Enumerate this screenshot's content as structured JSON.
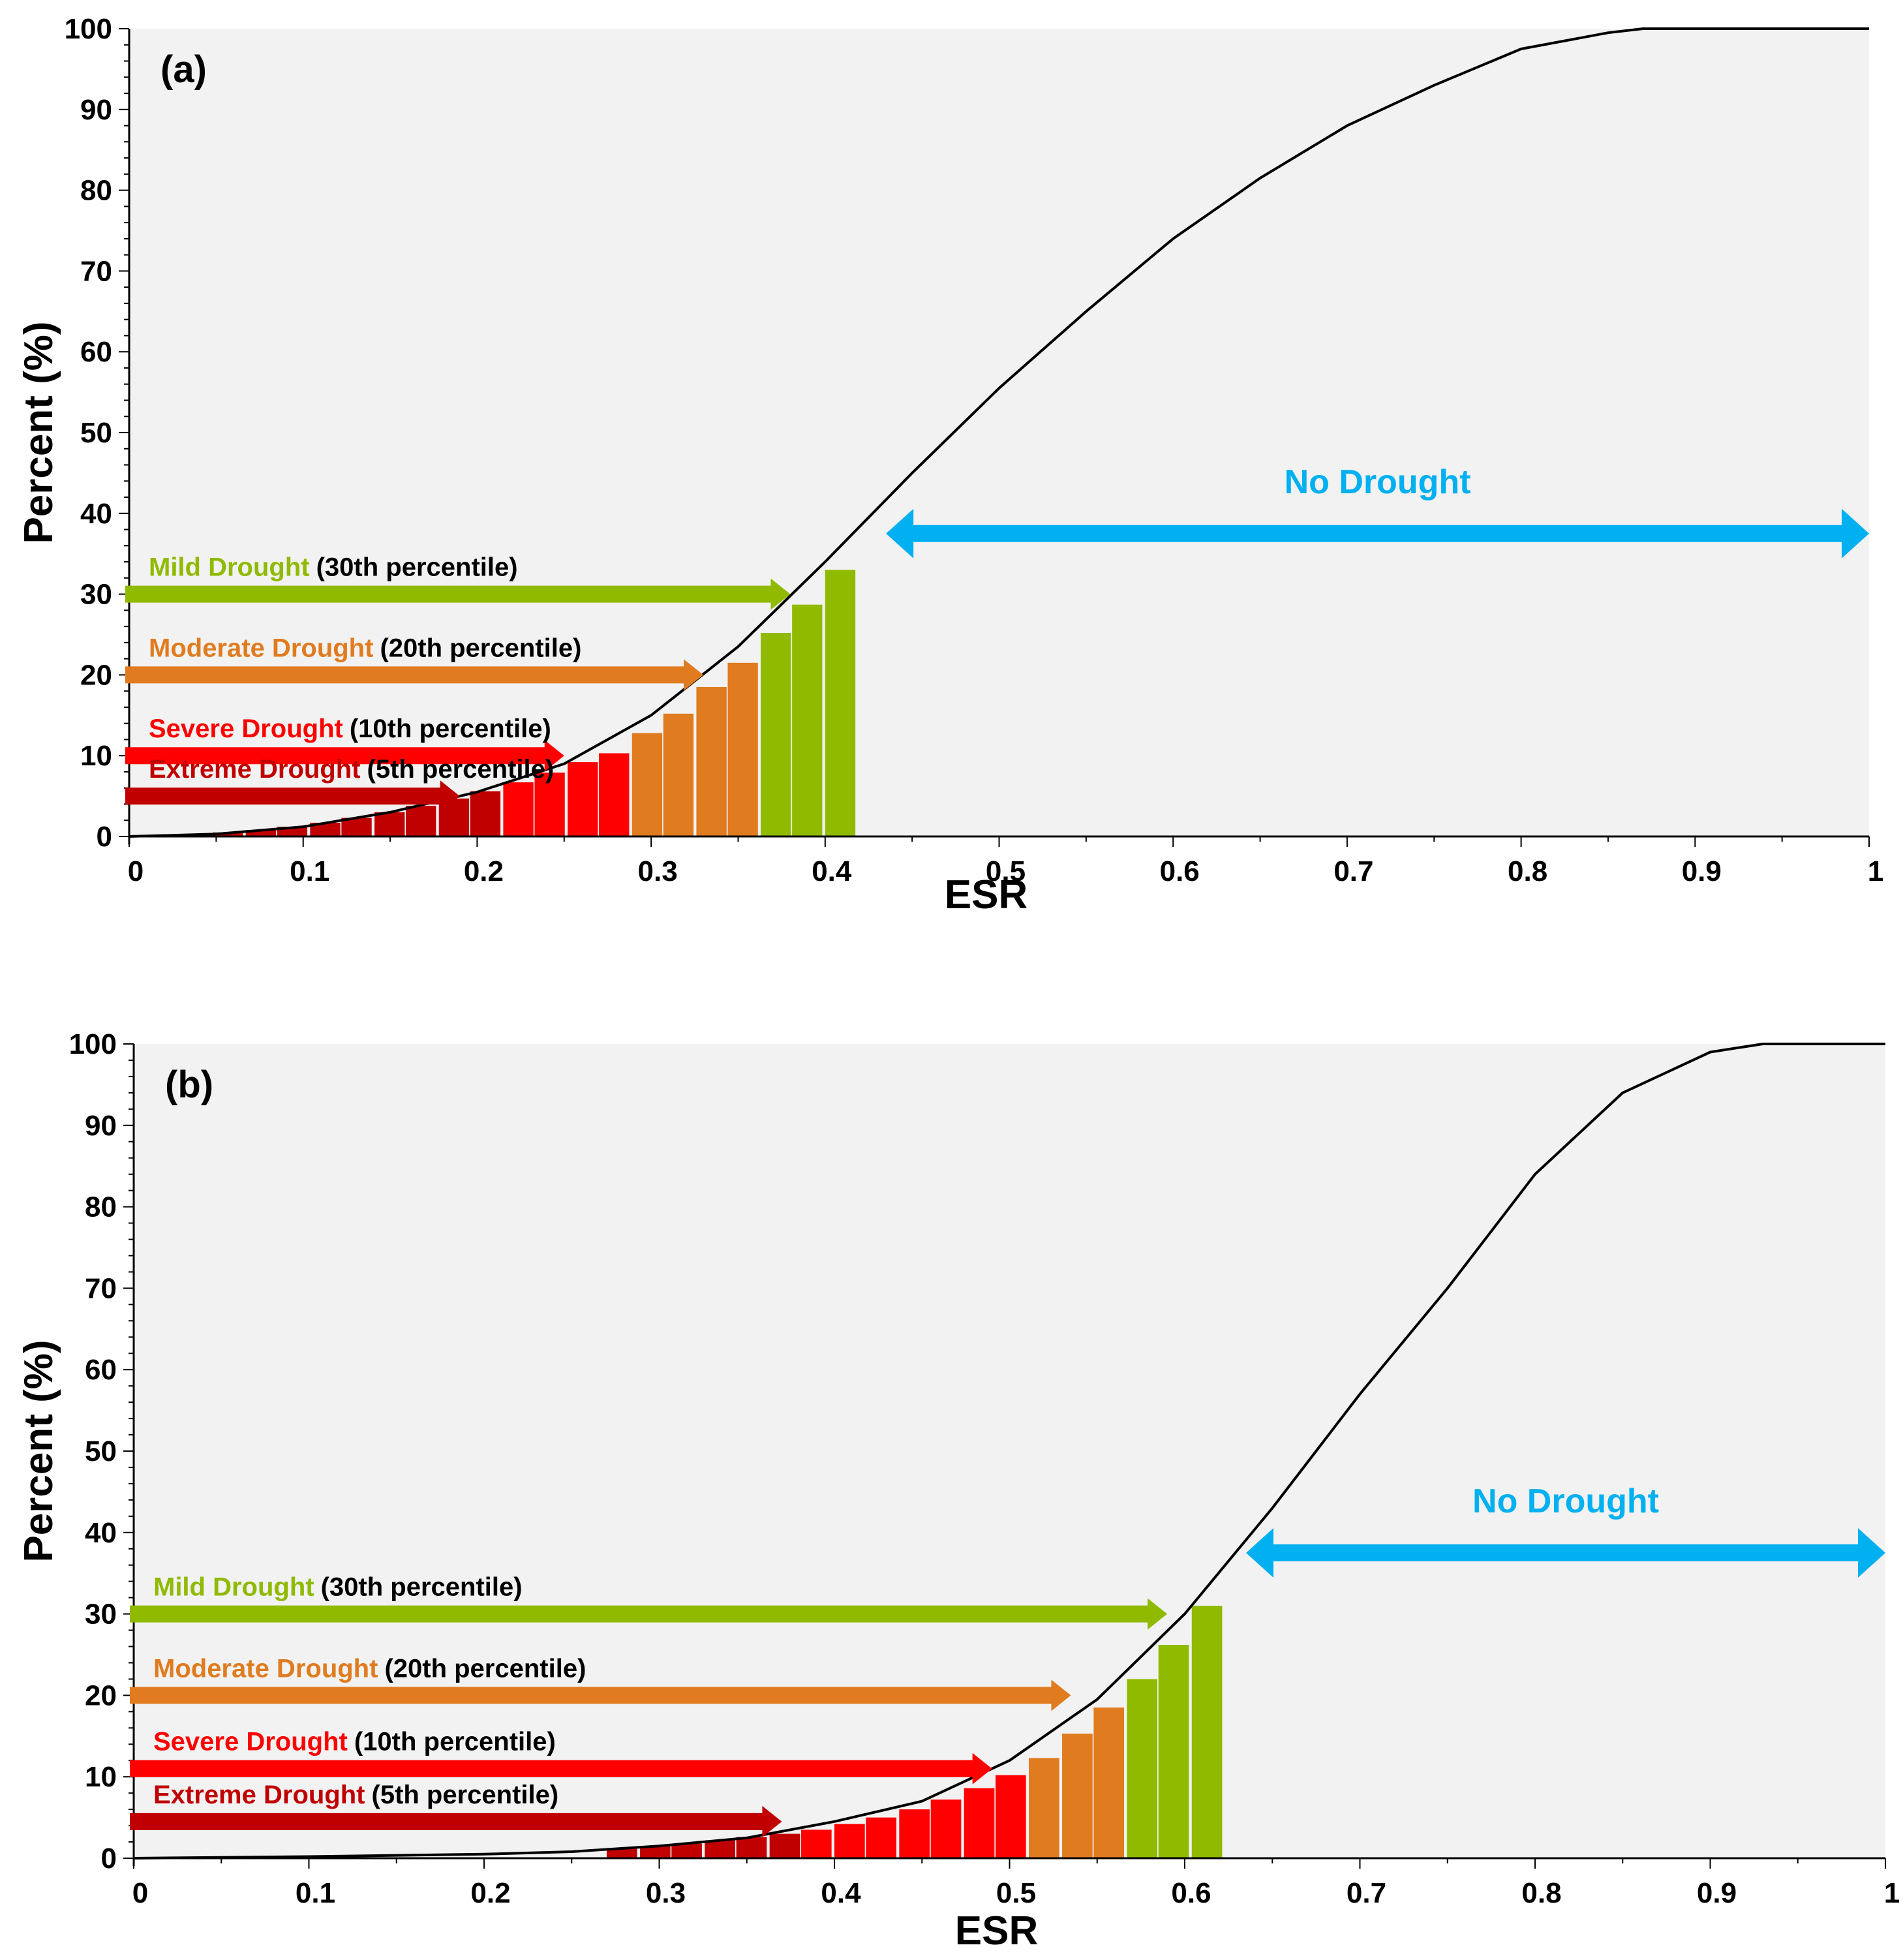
{
  "chart_data": [
    {
      "type": "line",
      "panel_label": "(a)",
      "xlabel": "ESR",
      "ylabel": "Percent (%)",
      "xlim": [
        0,
        1
      ],
      "ylim": [
        0,
        100
      ],
      "x_ticks": [
        "0",
        "0.1",
        "0.2",
        "0.3",
        "0.4",
        "0.5",
        "0.6",
        "0.7",
        "0.8",
        "0.9",
        "1"
      ],
      "y_ticks": [
        "0",
        "10",
        "20",
        "30",
        "40",
        "50",
        "60",
        "70",
        "80",
        "90",
        "100"
      ],
      "background": "#f2f2f2",
      "grid": false,
      "curve": {
        "x": [
          0,
          0.05,
          0.1,
          0.15,
          0.2,
          0.25,
          0.3,
          0.35,
          0.4,
          0.45,
          0.5,
          0.55,
          0.6,
          0.65,
          0.7,
          0.75,
          0.8,
          0.85,
          0.87,
          0.9,
          1.0
        ],
        "y": [
          0,
          0.3,
          1.2,
          3.0,
          5.5,
          9.0,
          15.0,
          23.5,
          34.0,
          45.0,
          55.5,
          65.0,
          74.0,
          81.5,
          88.0,
          93.0,
          97.5,
          99.5,
          100,
          100,
          100
        ]
      },
      "bars": {
        "width": 0.0185,
        "x": [
          0.011,
          0.03,
          0.048,
          0.067,
          0.085,
          0.104,
          0.122,
          0.141,
          0.159,
          0.178,
          0.196,
          0.215,
          0.233,
          0.252,
          0.27,
          0.289,
          0.307,
          0.326,
          0.344,
          0.363,
          0.381,
          0.4
        ],
        "y": [
          0.2,
          0.3,
          0.5,
          0.8,
          1.2,
          1.7,
          2.3,
          3.0,
          3.8,
          4.7,
          5.6,
          6.7,
          7.9,
          9.2,
          10.3,
          12.8,
          15.2,
          18.5,
          21.5,
          25.2,
          28.7,
          33.0
        ],
        "category": [
          "extreme",
          "extreme",
          "extreme",
          "extreme",
          "extreme",
          "extreme",
          "extreme",
          "extreme",
          "extreme",
          "extreme",
          "extreme",
          "severe",
          "severe",
          "severe",
          "severe",
          "moderate",
          "moderate",
          "moderate",
          "moderate",
          "mild",
          "mild",
          "mild"
        ]
      },
      "bands": [
        {
          "key": "mild",
          "name": "Mild Drought",
          "detail": "(30th percentile)",
          "value": 30,
          "arrow_to": 0.38
        },
        {
          "key": "moderate",
          "name": "Moderate Drought",
          "detail": "(20th percentile)",
          "value": 20,
          "arrow_to": 0.33
        },
        {
          "key": "severe",
          "name": "Severe Drought",
          "detail": "(10th percentile)",
          "value": 10,
          "arrow_to": 0.25
        },
        {
          "key": "extreme",
          "name": "Extreme Drought",
          "detail": "(5th percentile)",
          "value": 5,
          "arrow_to": 0.19
        }
      ],
      "no_drought": {
        "label": "No Drought",
        "x_from": 0.435,
        "x_to": 1.0,
        "y": 37.5
      }
    },
    {
      "type": "line",
      "panel_label": "(b)",
      "xlabel": "ESR",
      "ylabel": "Percent (%)",
      "xlim": [
        0,
        1
      ],
      "ylim": [
        0,
        100
      ],
      "x_ticks": [
        "0",
        "0.1",
        "0.2",
        "0.3",
        "0.4",
        "0.5",
        "0.6",
        "0.7",
        "0.8",
        "0.9",
        "1"
      ],
      "y_ticks": [
        "0",
        "10",
        "20",
        "30",
        "40",
        "50",
        "60",
        "70",
        "80",
        "90",
        "100"
      ],
      "background": "#f2f2f2",
      "grid": false,
      "curve": {
        "x": [
          0,
          0.1,
          0.2,
          0.25,
          0.3,
          0.35,
          0.4,
          0.45,
          0.5,
          0.55,
          0.6,
          0.65,
          0.7,
          0.75,
          0.8,
          0.85,
          0.9,
          0.93,
          0.95,
          1.0
        ],
        "y": [
          0,
          0.2,
          0.5,
          0.8,
          1.5,
          2.5,
          4.5,
          7.0,
          12.0,
          19.5,
          30.0,
          43.0,
          57.0,
          70.0,
          84.0,
          94.0,
          99.0,
          100,
          100,
          100
        ]
      },
      "bars": {
        "width": 0.0185,
        "x": [
          0.27,
          0.289,
          0.307,
          0.326,
          0.344,
          0.363,
          0.381,
          0.4,
          0.418,
          0.437,
          0.455,
          0.474,
          0.492,
          0.511,
          0.53,
          0.548,
          0.567,
          0.585,
          0.604
        ],
        "y": [
          1.2,
          1.5,
          1.8,
          2.2,
          2.6,
          3.0,
          3.5,
          4.2,
          5.0,
          6.0,
          7.2,
          8.6,
          10.2,
          12.3,
          15.3,
          18.5,
          22.0,
          26.2,
          31.0
        ],
        "category": [
          "extreme",
          "extreme",
          "extreme",
          "extreme",
          "extreme",
          "extreme",
          "severe",
          "severe",
          "severe",
          "severe",
          "severe",
          "severe",
          "severe",
          "moderate",
          "moderate",
          "moderate",
          "mild",
          "mild",
          "mild"
        ]
      },
      "bands": [
        {
          "key": "mild",
          "name": "Mild Drought",
          "detail": "(30th percentile)",
          "value": 30,
          "arrow_to": 0.59
        },
        {
          "key": "moderate",
          "name": "Moderate Drought",
          "detail": "(20th percentile)",
          "value": 20,
          "arrow_to": 0.535
        },
        {
          "key": "severe",
          "name": "Severe Drought",
          "detail": "(10th percentile)",
          "value": 11,
          "arrow_to": 0.49
        },
        {
          "key": "extreme",
          "name": "Extreme Drought",
          "detail": "(5th percentile)",
          "value": 4.5,
          "arrow_to": 0.37
        }
      ],
      "no_drought": {
        "label": "No Drought",
        "x_from": 0.635,
        "x_to": 1.0,
        "y": 37.5
      }
    }
  ],
  "colors": {
    "extreme": "#c00000",
    "severe": "#ff0000",
    "moderate": "#e07b1f",
    "mild": "#8fba00",
    "no_drought": "#00b0f0",
    "curve": "#000000",
    "plot_bg": "#f2f2f2"
  }
}
